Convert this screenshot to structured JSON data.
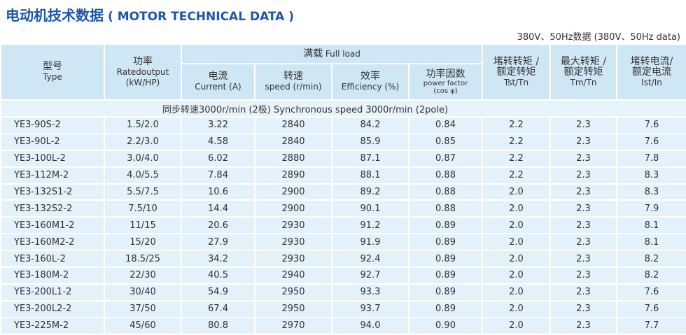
{
  "header": {
    "title_cn": "电动机技术数据",
    "title_en": "( MOTOR TECHNICAL DATA )",
    "note": "380V、50Hz数据 (380V、50Hz data)"
  },
  "table": {
    "group": {
      "cn": "满载",
      "en": "Full load"
    },
    "columns": [
      {
        "cn": "型号",
        "en": "Type"
      },
      {
        "cn": "功率",
        "en": "Ratedoutput",
        "unit": "(kW/HP)"
      },
      {
        "cn": "电流",
        "en": "Current (A)"
      },
      {
        "cn": "转速",
        "en": "speed (r/min)"
      },
      {
        "cn": "效率",
        "en": "Efficiency (%)"
      },
      {
        "cn": "功率因数",
        "en": "power factor",
        "unit": "(cos φ)"
      },
      {
        "cn": "堵转转矩 /",
        "cn2": "额定转矩",
        "en": "Tst/Tn"
      },
      {
        "cn": "最大转矩 /",
        "cn2": "额定转矩",
        "en": "Tm/Tn"
      },
      {
        "cn": "堵转电流/",
        "cn2": "额定电流",
        "en": "Ist/In"
      }
    ],
    "section": "同步转速3000r/min (2极)   Synchronous speed 3000r/min (2pole)",
    "rows": [
      [
        "YE3-90S-2",
        "1.5/2.0",
        "3.22",
        "2840",
        "84.2",
        "0.84",
        "2.2",
        "2.3",
        "7.6"
      ],
      [
        "YE3-90L-2",
        "2.2/3.0",
        "4.58",
        "2840",
        "85.9",
        "0.85",
        "2.2",
        "2.3",
        "7.6"
      ],
      [
        "YE3-100L-2",
        "3.0/4.0",
        "6.02",
        "2880",
        "87.1",
        "0.87",
        "2.2",
        "2.3",
        "7.8"
      ],
      [
        "YE3-112M-2",
        "4.0/5.5",
        "7.84",
        "2890",
        "88.1",
        "0.88",
        "2.2",
        "2.3",
        "8.3"
      ],
      [
        "YE3-132S1-2",
        "5.5/7.5",
        "10.6",
        "2900",
        "89.2",
        "0.88",
        "2.0",
        "2.3",
        "8.3"
      ],
      [
        "YE3-132S2-2",
        "7.5/10",
        "14.4",
        "2900",
        "90.1",
        "0.88",
        "2.0",
        "2.3",
        "7.9"
      ],
      [
        "YE3-160M1-2",
        "11/15",
        "20.6",
        "2930",
        "91.2",
        "0.89",
        "2.0",
        "2.3",
        "8.1"
      ],
      [
        "YE3-160M2-2",
        "15/20",
        "27.9",
        "2930",
        "91.9",
        "0.89",
        "2.0",
        "2.3",
        "8.1"
      ],
      [
        "YE3-160L-2",
        "18.5/25",
        "34.2",
        "2930",
        "92.4",
        "0.89",
        "2.0",
        "2.3",
        "8.2"
      ],
      [
        "YE3-180M-2",
        "22/30",
        "40.5",
        "2940",
        "92.7",
        "0.89",
        "2.0",
        "2.3",
        "8.2"
      ],
      [
        "YE3-200L1-2",
        "30/40",
        "54.9",
        "2950",
        "93.3",
        "0.89",
        "2.0",
        "2.3",
        "7.6"
      ],
      [
        "YE3-200L2-2",
        "37/50",
        "67.4",
        "2950",
        "93.7",
        "0.89",
        "2.0",
        "2.3",
        "7.6"
      ],
      [
        "YE3-225M-2",
        "45/60",
        "80.8",
        "2970",
        "94.0",
        "0.90",
        "2.0",
        "2.3",
        "7.7"
      ]
    ]
  }
}
